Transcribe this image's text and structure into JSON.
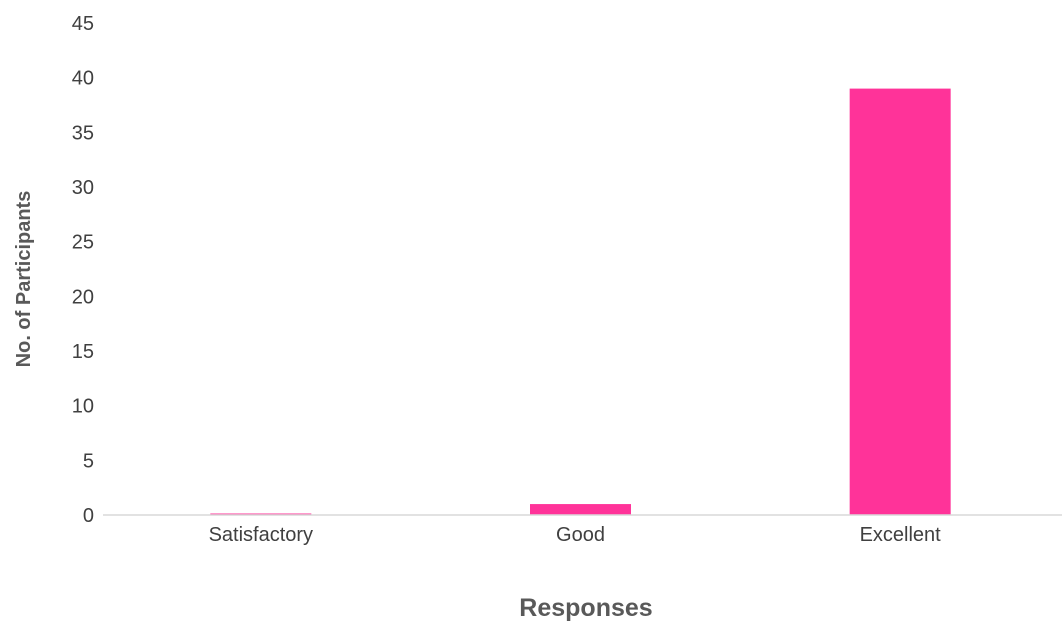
{
  "chart_data": {
    "type": "bar",
    "categories": [
      "Satisfactory",
      "Good",
      "Excellent"
    ],
    "values": [
      0,
      1,
      39
    ],
    "xlabel": "Responses",
    "ylabel": "No. of Participants",
    "ylim": [
      0,
      45
    ],
    "yticks": [
      0,
      5,
      10,
      15,
      20,
      25,
      30,
      35,
      40,
      45
    ],
    "grid": false,
    "legend": "none",
    "bar_color": "#FF3399",
    "axis_color": "#D9D9D9"
  }
}
